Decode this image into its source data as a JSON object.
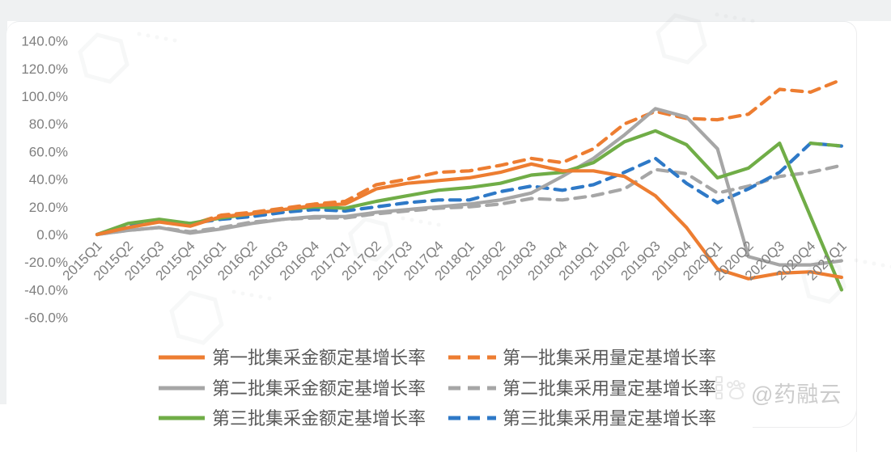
{
  "page": {
    "watermark_handle": "@药融云"
  },
  "chart_data": {
    "type": "line",
    "title": "",
    "xlabel": "",
    "ylabel": "",
    "ylim": [
      -60,
      140
    ],
    "grid": false,
    "legend_position": "bottom",
    "y_ticks": [
      "140.0%",
      "120.0%",
      "100.0%",
      "80.0%",
      "60.0%",
      "40.0%",
      "20.0%",
      "0.0%",
      "-20.0%",
      "-40.0%",
      "-60.0%"
    ],
    "categories": [
      "2015Q1",
      "2015Q2",
      "2015Q3",
      "2015Q4",
      "2016Q1",
      "2016Q2",
      "2016Q3",
      "2016Q4",
      "2017Q1",
      "2017Q2",
      "2017Q3",
      "2017Q4",
      "2018Q1",
      "2018Q2",
      "2018Q3",
      "2018Q4",
      "2019Q1",
      "2019Q2",
      "2019Q3",
      "2019Q4",
      "2020Q1",
      "2020Q2",
      "2020Q3",
      "2020Q4",
      "2021Q1"
    ],
    "unit": "percent",
    "series": [
      {
        "name": "第一批集采金额定基增长率",
        "style": "solid",
        "color": "#ED7D31",
        "values": [
          0,
          5,
          9,
          6,
          13,
          15,
          18,
          21,
          22,
          33,
          37,
          39,
          41,
          45,
          51,
          46,
          46,
          42,
          28,
          5,
          -25,
          -32,
          -28,
          -27,
          -31
        ]
      },
      {
        "name": "第一批集采用量定基增长率",
        "style": "dashed",
        "color": "#ED7D31",
        "values": [
          0,
          6,
          10,
          7,
          14,
          16,
          19,
          22,
          24,
          36,
          40,
          45,
          46,
          50,
          55,
          52,
          62,
          80,
          89,
          84,
          83,
          87,
          105,
          103,
          112
        ]
      },
      {
        "name": "第二批集采金额定基增长率",
        "style": "solid",
        "color": "#A6A6A6",
        "values": [
          0,
          3,
          5,
          1,
          4,
          8,
          11,
          13,
          13,
          16,
          18,
          20,
          22,
          25,
          30,
          42,
          55,
          72,
          91,
          85,
          62,
          -16,
          -22,
          -22,
          -19
        ]
      },
      {
        "name": "第二批集采用量定基增长率",
        "style": "dashed",
        "color": "#A6A6A6",
        "values": [
          0,
          3,
          5,
          2,
          5,
          9,
          11,
          12,
          12,
          15,
          17,
          19,
          20,
          22,
          26,
          25,
          28,
          33,
          47,
          44,
          30,
          35,
          42,
          45,
          50
        ]
      },
      {
        "name": "第三批集采金额定基增长率",
        "style": "solid",
        "color": "#70AD47",
        "values": [
          0,
          8,
          11,
          8,
          12,
          15,
          18,
          20,
          19,
          24,
          28,
          32,
          34,
          37,
          43,
          45,
          52,
          67,
          75,
          65,
          41,
          48,
          66,
          13,
          -40
        ]
      },
      {
        "name": "第三批集采用量定基增长率",
        "style": "dashed",
        "color": "#2E79C7",
        "final_segment_color": "#70AD47",
        "values": [
          0,
          7,
          10,
          8,
          11,
          13,
          16,
          18,
          17,
          20,
          23,
          25,
          25,
          31,
          35,
          32,
          36,
          45,
          55,
          37,
          23,
          33,
          45,
          66,
          64
        ]
      }
    ]
  }
}
